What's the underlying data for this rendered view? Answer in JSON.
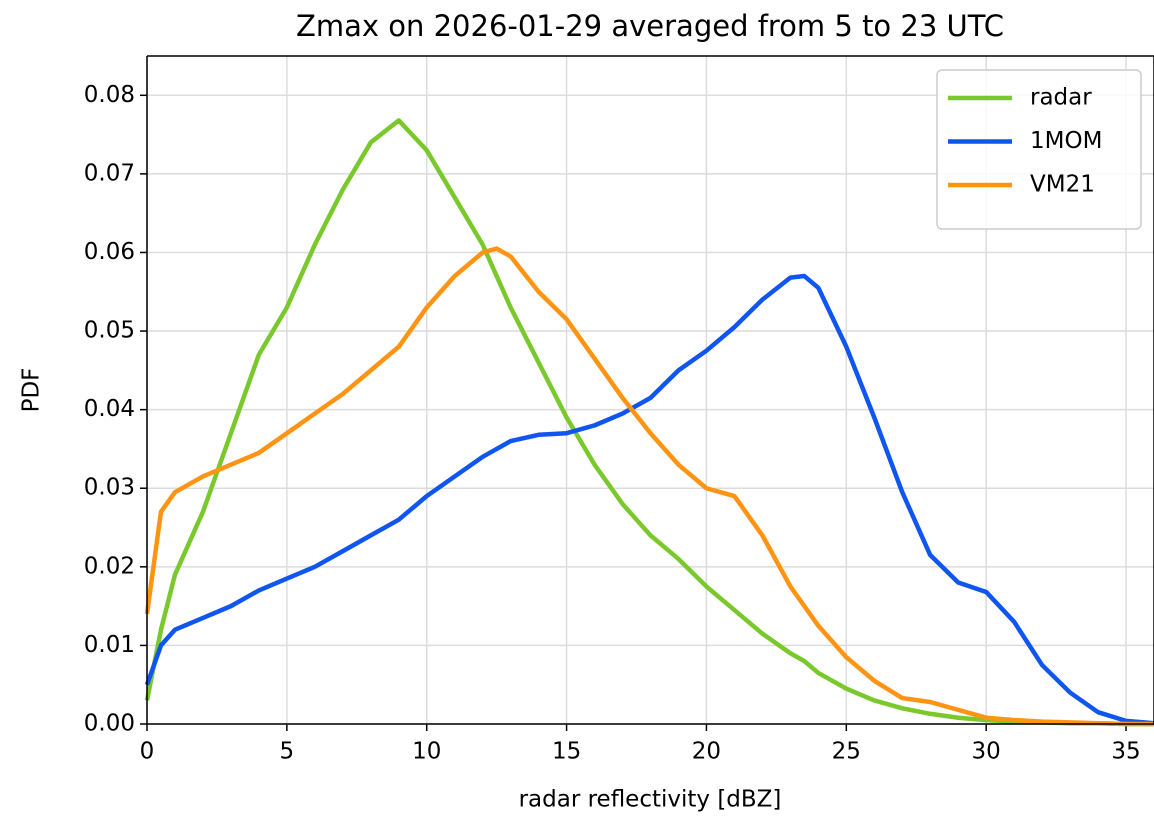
{
  "chart_data": {
    "type": "line",
    "title": "Zmax on 2026-01-29 averaged from 5 to 23 UTC",
    "xlabel": "radar reflectivity [dBZ]",
    "ylabel": "PDF",
    "x": [
      0,
      0.5,
      1,
      2,
      3,
      4,
      5,
      6,
      7,
      8,
      9,
      10,
      11,
      12,
      12.5,
      13,
      14,
      15,
      16,
      17,
      18,
      19,
      20,
      21,
      22,
      23,
      23.5,
      24,
      25,
      26,
      27,
      28,
      29,
      30,
      31,
      32,
      33,
      34,
      35,
      36
    ],
    "series": [
      {
        "name": "radar",
        "color": "#7ac92c",
        "values": [
          0.003,
          0.012,
          0.019,
          0.027,
          0.037,
          0.047,
          0.053,
          0.061,
          0.068,
          0.074,
          0.0768,
          0.073,
          0.067,
          0.061,
          0.057,
          0.053,
          0.046,
          0.039,
          0.033,
          0.028,
          0.024,
          0.021,
          0.0175,
          0.0145,
          0.0115,
          0.009,
          0.008,
          0.0065,
          0.0045,
          0.003,
          0.002,
          0.0013,
          0.0008,
          0.0005,
          0.0003,
          0.0002,
          0.0001,
          0.0001,
          0,
          0
        ]
      },
      {
        "name": "1MOM",
        "color": "#0f55f0",
        "values": [
          0.005,
          0.01,
          0.012,
          0.0135,
          0.015,
          0.017,
          0.0185,
          0.02,
          0.022,
          0.024,
          0.026,
          0.029,
          0.0315,
          0.034,
          0.035,
          0.036,
          0.0368,
          0.037,
          0.038,
          0.0395,
          0.0415,
          0.045,
          0.0475,
          0.0505,
          0.054,
          0.0568,
          0.057,
          0.0555,
          0.048,
          0.039,
          0.0295,
          0.0215,
          0.018,
          0.0168,
          0.013,
          0.0075,
          0.004,
          0.0015,
          0.0004,
          0.0001
        ]
      },
      {
        "name": "VM21",
        "color": "#ff9412",
        "values": [
          0.014,
          0.027,
          0.0295,
          0.0315,
          0.033,
          0.0345,
          0.037,
          0.0395,
          0.042,
          0.045,
          0.048,
          0.053,
          0.057,
          0.06,
          0.0605,
          0.0595,
          0.055,
          0.0515,
          0.0465,
          0.0415,
          0.037,
          0.033,
          0.03,
          0.029,
          0.024,
          0.0175,
          0.015,
          0.0125,
          0.0085,
          0.0055,
          0.0033,
          0.0028,
          0.0018,
          0.0008,
          0.0005,
          0.0003,
          0.0002,
          0.0001,
          0,
          0
        ]
      }
    ],
    "xlim": [
      0,
      36
    ],
    "xticks": [
      0,
      5,
      10,
      15,
      20,
      25,
      30,
      35
    ],
    "ylim": [
      0,
      0.085
    ],
    "yticks": [
      {
        "value": 0,
        "label": "0.00"
      },
      0.01,
      0.02,
      0.03,
      0.04,
      0.05,
      0.06,
      0.07,
      0.08
    ],
    "grid": true,
    "legend": "upper right"
  }
}
